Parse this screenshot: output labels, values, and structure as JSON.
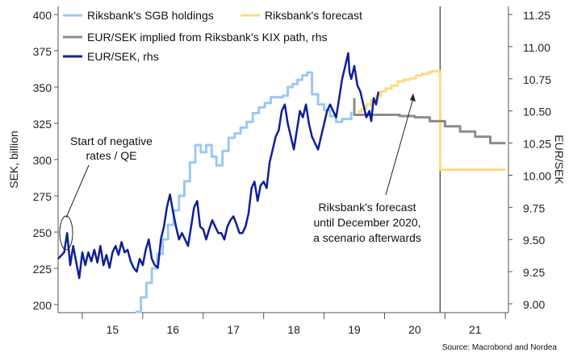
{
  "chart_data": {
    "type": "line",
    "ylabel_left": "SEK, billion",
    "ylabel_right": "EUR/SEK",
    "ylim_left": [
      195,
      405
    ],
    "ylim_right": [
      8.95,
      11.3
    ],
    "yticks_left": [
      "200",
      "225",
      "250",
      "275",
      "300",
      "325",
      "350",
      "375",
      "400"
    ],
    "yticks_right": [
      "9.00",
      "9.25",
      "9.50",
      "9.75",
      "10.00",
      "10.25",
      "10.50",
      "10.75",
      "11.00",
      "11.25"
    ],
    "xticks": [
      "15",
      "16",
      "17",
      "18",
      "19",
      "20",
      "21"
    ],
    "vertical_line_x": 2020.92,
    "legend": [
      {
        "label": "Riksbank's SGB holdings",
        "color": "#9cc8f5"
      },
      {
        "label": "Riksbank's forecast",
        "color": "#fadc82"
      },
      {
        "label": "EUR/SEK implied from Riksbank's KIX path, rhs",
        "color": "#8c8c8c"
      },
      {
        "label": "EUR/SEK, rhs",
        "color": "#0f1f9a"
      }
    ],
    "series": [
      {
        "name": "Riksbank's SGB holdings",
        "axis": "left",
        "step": true,
        "points": [
          [
            2015.88,
            195
          ],
          [
            2015.97,
            205
          ],
          [
            2016.06,
            215
          ],
          [
            2016.15,
            225
          ],
          [
            2016.24,
            235
          ],
          [
            2016.33,
            245
          ],
          [
            2016.42,
            255
          ],
          [
            2016.51,
            265
          ],
          [
            2016.6,
            275
          ],
          [
            2016.69,
            285
          ],
          [
            2016.78,
            298
          ],
          [
            2016.87,
            310
          ],
          [
            2016.96,
            305
          ],
          [
            2017.05,
            310
          ],
          [
            2017.14,
            302
          ],
          [
            2017.22,
            296
          ],
          [
            2017.32,
            306
          ],
          [
            2017.42,
            315
          ],
          [
            2017.52,
            318
          ],
          [
            2017.62,
            322
          ],
          [
            2017.72,
            326
          ],
          [
            2017.82,
            332
          ],
          [
            2017.92,
            336
          ],
          [
            2018.02,
            339
          ],
          [
            2018.12,
            343
          ],
          [
            2018.22,
            343
          ],
          [
            2018.32,
            344
          ],
          [
            2018.4,
            350
          ],
          [
            2018.48,
            352
          ],
          [
            2018.56,
            355
          ],
          [
            2018.64,
            358
          ],
          [
            2018.72,
            360
          ],
          [
            2018.8,
            345
          ],
          [
            2018.9,
            338
          ],
          [
            2019.0,
            334
          ],
          [
            2019.1,
            330
          ],
          [
            2019.2,
            326
          ],
          [
            2019.3,
            328
          ],
          [
            2019.45,
            333
          ]
        ]
      },
      {
        "name": "Riksbank's forecast",
        "axis": "left",
        "step": true,
        "points": [
          [
            2019.55,
            333
          ],
          [
            2019.62,
            335
          ],
          [
            2019.7,
            338
          ],
          [
            2019.78,
            341
          ],
          [
            2019.86,
            344
          ],
          [
            2019.94,
            347
          ],
          [
            2020.02,
            349
          ],
          [
            2020.12,
            351
          ],
          [
            2020.22,
            354
          ],
          [
            2020.32,
            355
          ],
          [
            2020.42,
            356
          ],
          [
            2020.52,
            358
          ],
          [
            2020.62,
            359
          ],
          [
            2020.72,
            360
          ],
          [
            2020.78,
            361
          ],
          [
            2020.92,
            361
          ],
          [
            2020.92,
            293
          ],
          [
            2022.0,
            293
          ]
        ]
      },
      {
        "name": "EUR/SEK implied from Riksbank's KIX path, rhs",
        "axis": "right",
        "step": true,
        "points": [
          [
            2019.5,
            10.6
          ],
          [
            2019.5,
            10.47
          ],
          [
            2019.75,
            10.47
          ],
          [
            2020.0,
            10.47
          ],
          [
            2020.25,
            10.46
          ],
          [
            2020.5,
            10.45
          ],
          [
            2020.75,
            10.42
          ],
          [
            2021.0,
            10.38
          ],
          [
            2021.25,
            10.34
          ],
          [
            2021.5,
            10.3
          ],
          [
            2021.75,
            10.25
          ],
          [
            2022.0,
            10.25
          ]
        ]
      },
      {
        "name": "EUR/SEK, rhs",
        "axis": "right",
        "step": false,
        "points": [
          [
            2014.6,
            9.35
          ],
          [
            2014.7,
            9.4
          ],
          [
            2014.75,
            9.55
          ],
          [
            2014.8,
            9.3
          ],
          [
            2014.85,
            9.45
          ],
          [
            2014.9,
            9.32
          ],
          [
            2014.95,
            9.2
          ],
          [
            2015.0,
            9.4
          ],
          [
            2015.05,
            9.3
          ],
          [
            2015.1,
            9.4
          ],
          [
            2015.15,
            9.33
          ],
          [
            2015.2,
            9.42
          ],
          [
            2015.25,
            9.32
          ],
          [
            2015.3,
            9.45
          ],
          [
            2015.35,
            9.3
          ],
          [
            2015.4,
            9.38
          ],
          [
            2015.45,
            9.28
          ],
          [
            2015.5,
            9.4
          ],
          [
            2015.55,
            9.45
          ],
          [
            2015.6,
            9.38
          ],
          [
            2015.65,
            9.48
          ],
          [
            2015.7,
            9.4
          ],
          [
            2015.75,
            9.42
          ],
          [
            2015.8,
            9.33
          ],
          [
            2015.85,
            9.28
          ],
          [
            2015.9,
            9.25
          ],
          [
            2015.95,
            9.35
          ],
          [
            2016.0,
            9.3
          ],
          [
            2016.05,
            9.42
          ],
          [
            2016.1,
            9.5
          ],
          [
            2016.15,
            9.35
          ],
          [
            2016.2,
            9.3
          ],
          [
            2016.25,
            9.28
          ],
          [
            2016.3,
            9.5
          ],
          [
            2016.35,
            9.6
          ],
          [
            2016.4,
            9.75
          ],
          [
            2016.45,
            9.85
          ],
          [
            2016.5,
            9.72
          ],
          [
            2016.55,
            9.6
          ],
          [
            2016.6,
            9.5
          ],
          [
            2016.65,
            9.55
          ],
          [
            2016.7,
            9.5
          ],
          [
            2016.75,
            9.45
          ],
          [
            2016.8,
            9.6
          ],
          [
            2016.85,
            9.75
          ],
          [
            2016.9,
            9.8
          ],
          [
            2016.95,
            9.6
          ],
          [
            2017.0,
            9.58
          ],
          [
            2017.05,
            9.5
          ],
          [
            2017.1,
            9.58
          ],
          [
            2017.15,
            9.65
          ],
          [
            2017.2,
            9.6
          ],
          [
            2017.25,
            9.55
          ],
          [
            2017.3,
            9.55
          ],
          [
            2017.35,
            9.5
          ],
          [
            2017.4,
            9.6
          ],
          [
            2017.45,
            9.65
          ],
          [
            2017.5,
            9.68
          ],
          [
            2017.55,
            9.62
          ],
          [
            2017.6,
            9.55
          ],
          [
            2017.65,
            9.55
          ],
          [
            2017.7,
            9.6
          ],
          [
            2017.75,
            9.7
          ],
          [
            2017.8,
            9.9
          ],
          [
            2017.85,
            9.95
          ],
          [
            2017.9,
            9.8
          ],
          [
            2017.95,
            9.92
          ],
          [
            2018.0,
            9.95
          ],
          [
            2018.05,
            9.9
          ],
          [
            2018.1,
            10.1
          ],
          [
            2018.15,
            10.2
          ],
          [
            2018.2,
            10.3
          ],
          [
            2018.25,
            10.35
          ],
          [
            2018.3,
            10.5
          ],
          [
            2018.35,
            10.55
          ],
          [
            2018.4,
            10.4
          ],
          [
            2018.45,
            10.3
          ],
          [
            2018.5,
            10.2
          ],
          [
            2018.55,
            10.35
          ],
          [
            2018.6,
            10.5
          ],
          [
            2018.65,
            10.45
          ],
          [
            2018.7,
            10.55
          ],
          [
            2018.75,
            10.4
          ],
          [
            2018.8,
            10.3
          ],
          [
            2018.85,
            10.25
          ],
          [
            2018.9,
            10.2
          ],
          [
            2018.95,
            10.3
          ],
          [
            2019.0,
            10.4
          ],
          [
            2019.05,
            10.5
          ],
          [
            2019.1,
            10.55
          ],
          [
            2019.15,
            10.5
          ],
          [
            2019.2,
            10.45
          ],
          [
            2019.25,
            10.6
          ],
          [
            2019.3,
            10.75
          ],
          [
            2019.35,
            10.85
          ],
          [
            2019.4,
            10.95
          ],
          [
            2019.42,
            10.8
          ],
          [
            2019.45,
            10.75
          ],
          [
            2019.5,
            10.85
          ],
          [
            2019.55,
            10.7
          ],
          [
            2019.6,
            10.65
          ],
          [
            2019.65,
            10.55
          ],
          [
            2019.7,
            10.45
          ],
          [
            2019.75,
            10.5
          ],
          [
            2019.78,
            10.42
          ],
          [
            2019.82,
            10.6
          ],
          [
            2019.86,
            10.55
          ],
          [
            2019.9,
            10.65
          ]
        ]
      }
    ]
  },
  "legend": {
    "item1": "Riksbank's SGB holdings",
    "item2": "Riksbank's forecast",
    "item3": "EUR/SEK implied from Riksbank's KIX path, rhs",
    "item4": "EUR/SEK, rhs"
  },
  "axes": {
    "left_title": "SEK, billion",
    "right_title": "EUR/SEK"
  },
  "annotations": {
    "negative_rates_line1": "Start of negative",
    "negative_rates_line2": "rates / QE",
    "forecast_line1": "Riksbank's forecast",
    "forecast_line2": "until December 2020,",
    "forecast_line3": "a scenario afterwards"
  },
  "source": "Source: Macrobond and Nordea"
}
